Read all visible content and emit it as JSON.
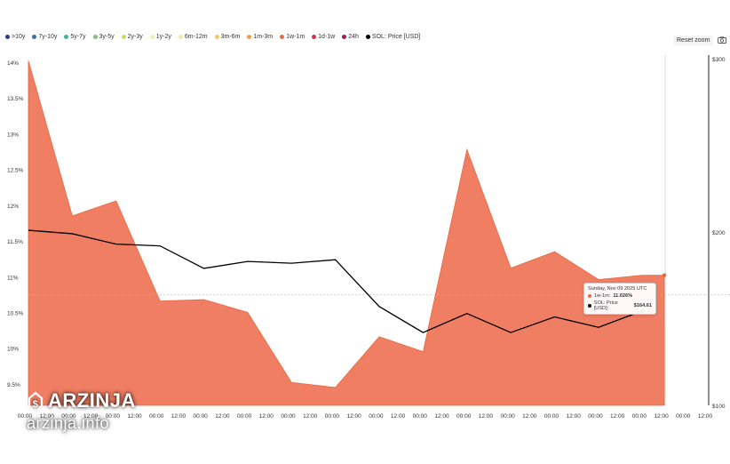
{
  "legend": [
    {
      "label": ">10y",
      "color": "#2f3c8a"
    },
    {
      "label": "7y-10y",
      "color": "#3a6fb0"
    },
    {
      "label": "5y-7y",
      "color": "#3fb3a6"
    },
    {
      "label": "3y-5y",
      "color": "#7cc771"
    },
    {
      "label": "2y-3y",
      "color": "#c7dd6a"
    },
    {
      "label": "1y-2y",
      "color": "#eef0a8"
    },
    {
      "label": "6m-12m",
      "color": "#f7e6a0"
    },
    {
      "label": "3m-6m",
      "color": "#f4c869"
    },
    {
      "label": "1m-3m",
      "color": "#f0a04a"
    },
    {
      "label": "1w-1m",
      "color": "#e9683f"
    },
    {
      "label": "1d-1w",
      "color": "#d6304a"
    },
    {
      "label": "24h",
      "color": "#9e1a5a"
    },
    {
      "label": "SOL: Price [USD]",
      "color": "#000000"
    }
  ],
  "toolbar": {
    "reset_zoom": "Reset zoom"
  },
  "icons": {
    "camera": "camera-icon"
  },
  "tooltip": {
    "date": "Sunday, Nov 09 2025 UTC",
    "series1_label": "1w-1m:",
    "series1_value": "11.026%",
    "series2_label": "SOL: Price [USD]:",
    "series2_value": "$164.61"
  },
  "watermark": {
    "brand": "ARZINJA",
    "url": "arzinja.info"
  },
  "chart_data": {
    "type": "area",
    "x_tick_labels": [
      "00:00",
      "12:00",
      "00:00",
      "12:00",
      "00:00",
      "12:00",
      "00:00",
      "12:00",
      "00:00",
      "12:00",
      "00:00",
      "12:00",
      "00:00",
      "12:00",
      "00:00",
      "12:00",
      "00:00",
      "12:00",
      "00:00",
      "12:00",
      "00:00",
      "12:00",
      "00:00",
      "12:00",
      "00:00",
      "12:00",
      "00:00",
      "12:00",
      "00:00",
      "12:00",
      "00:00",
      "12:00"
    ],
    "y_left": {
      "ticks": [
        "14%",
        "13.5%",
        "13%",
        "12.5%",
        "12%",
        "11.5%",
        "11%",
        "10.5%",
        "10%",
        "9.5%"
      ],
      "ylim": [
        9.2,
        14.05
      ]
    },
    "y_right": {
      "ticks": [
        "$300",
        "$200",
        "$100"
      ],
      "ylim": [
        100,
        300
      ]
    },
    "series": [
      {
        "name": "1w-1m",
        "color": "#ef7e63",
        "points": [
          [
            0,
            14.02
          ],
          [
            2,
            11.85
          ],
          [
            4,
            12.06
          ],
          [
            6,
            10.66
          ],
          [
            8,
            10.68
          ],
          [
            10,
            10.5
          ],
          [
            12,
            9.52
          ],
          [
            14,
            9.45
          ],
          [
            16,
            10.16
          ],
          [
            18,
            9.95
          ],
          [
            20,
            12.78
          ],
          [
            22,
            11.12
          ],
          [
            24,
            11.35
          ],
          [
            26,
            10.96
          ],
          [
            28,
            11.02
          ],
          [
            29,
            11.02
          ]
        ]
      },
      {
        "name": "SOL: Price [USD]",
        "color": "#000000",
        "points": [
          [
            0,
            201
          ],
          [
            2,
            199
          ],
          [
            4,
            193
          ],
          [
            6,
            192
          ],
          [
            8,
            179
          ],
          [
            10,
            183
          ],
          [
            12,
            182
          ],
          [
            14,
            184
          ],
          [
            16,
            157
          ],
          [
            18,
            142
          ],
          [
            20,
            153
          ],
          [
            22,
            142
          ],
          [
            24,
            151
          ],
          [
            26,
            145
          ],
          [
            28,
            154.5
          ]
        ]
      }
    ],
    "crosshair_y_pct": 10.75
  }
}
